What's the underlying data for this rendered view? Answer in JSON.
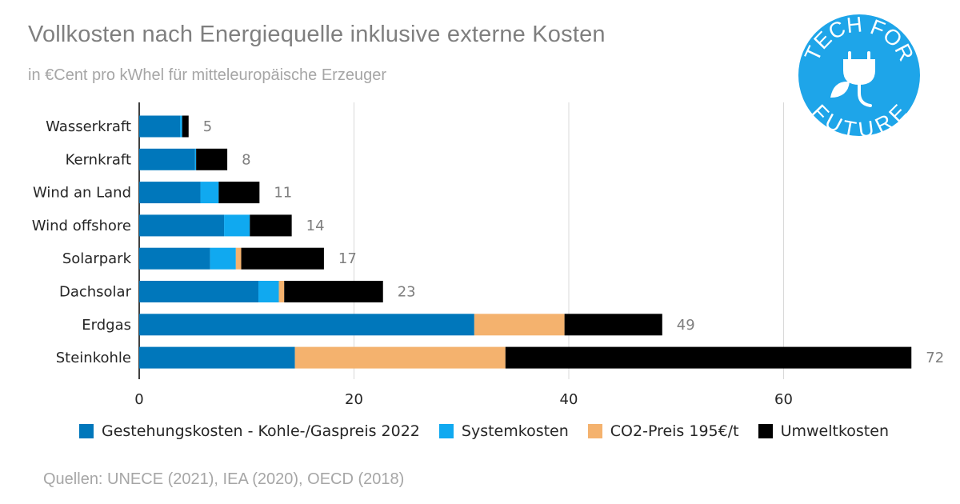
{
  "title": "Vollkosten nach Energiequelle inklusive externe Kosten",
  "subtitle": "in €Cent pro kWhel für mitteleuropäische Erzeuger",
  "source": "Quellen: UNECE (2021), IEA (2020), OECD (2018)",
  "logo": {
    "text_top": "TECH FOR",
    "text_bottom": "FUTURE",
    "color": "#1ea5e9",
    "icon": "plug-leaf-icon"
  },
  "chart_data": {
    "type": "bar",
    "orientation": "horizontal",
    "stacked": true,
    "categories": [
      "Wasserkraft",
      "Kernkraft",
      "Wind an Land",
      "Wind offshore",
      "Solarpark",
      "Dachsolar",
      "Erdgas",
      "Steinkohle"
    ],
    "series": [
      {
        "name": "Gestehungskosten - Kohle-/Gaspreis 2022",
        "color": "#0077bb",
        "values": [
          3.8,
          5.2,
          5.7,
          7.9,
          6.6,
          11.1,
          31.2,
          14.5
        ]
      },
      {
        "name": "Systemkosten",
        "color": "#10a9f0",
        "values": [
          0.2,
          0.1,
          1.7,
          2.4,
          2.4,
          1.9,
          0.0,
          0.0
        ]
      },
      {
        "name": "CO2-Preis 195€/t",
        "color": "#f4b26e",
        "values": [
          0.0,
          0.0,
          0.0,
          0.0,
          0.5,
          0.5,
          8.4,
          19.6
        ]
      },
      {
        "name": "Umweltkosten",
        "color": "#000000",
        "values": [
          0.6,
          2.9,
          3.8,
          3.9,
          7.7,
          9.2,
          9.1,
          37.8
        ]
      }
    ],
    "totals": [
      "5",
      "8",
      "11",
      "14",
      "17",
      "23",
      "49",
      "72"
    ],
    "xlim": [
      0,
      72
    ],
    "xticks": [
      0,
      20,
      40,
      60
    ],
    "xlabel": "",
    "ylabel": "",
    "grid": "vertical",
    "legend_position": "bottom"
  }
}
